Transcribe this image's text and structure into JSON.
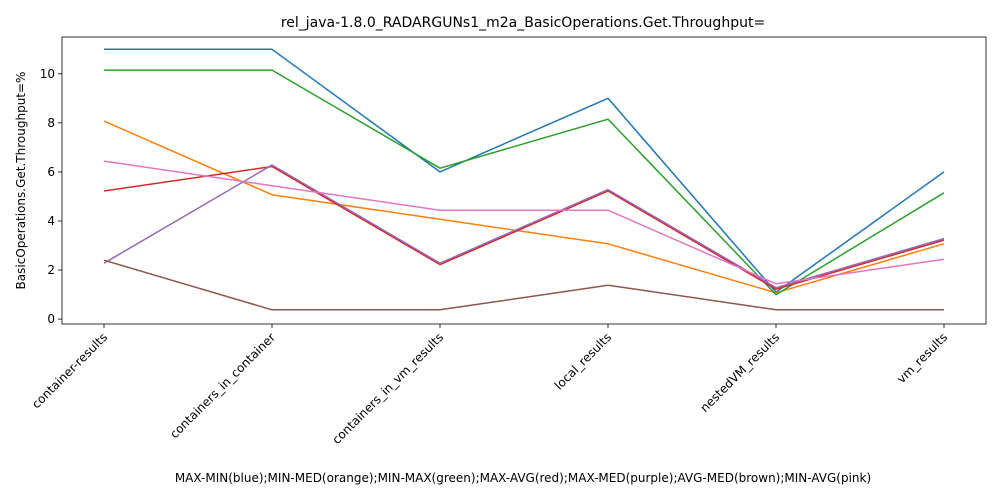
{
  "chart_data": {
    "type": "line",
    "title": "rel_java-1.8.0_RADARGUNs1_m2a_BasicOperations.Get.Throughput=",
    "xlabel": "MAX-MIN(blue);MIN-MED(orange);MIN-MAX(green);MAX-AVG(red);MAX-MED(purple);AVG-MED(brown);MIN-AVG(pink)",
    "ylabel": "BasicOperations.Get.Throughput=%",
    "categories": [
      "container-results",
      "containers_in_container",
      "containers_in_vm_results",
      "local_results",
      "nestedVM_results",
      "vm_results"
    ],
    "yticks": [
      "0",
      "2",
      "4",
      "6",
      "8",
      "10"
    ],
    "ylim": [
      -0.2,
      11.5
    ],
    "grid": false,
    "series": [
      {
        "color": "#1f77b4",
        "values": [
          11.0,
          11.0,
          6.0,
          9.0,
          1.1,
          6.0
        ]
      },
      {
        "color": "#ff7f0e",
        "values": [
          8.07,
          5.07,
          4.07,
          3.07,
          1.07,
          3.07
        ]
      },
      {
        "color": "#2ca02c",
        "values": [
          10.15,
          10.15,
          6.15,
          8.15,
          1.0,
          5.15
        ]
      },
      {
        "color": "#d62728",
        "values": [
          5.22,
          6.22,
          2.22,
          5.22,
          1.22,
          3.22
        ]
      },
      {
        "color": "#9467bd",
        "values": [
          2.28,
          6.28,
          2.28,
          5.28,
          1.28,
          3.28
        ]
      },
      {
        "color": "#8c564b",
        "values": [
          2.4,
          0.38,
          0.38,
          1.38,
          0.38,
          0.38
        ]
      },
      {
        "color": "#e377c2",
        "values": [
          6.44,
          5.44,
          4.44,
          4.44,
          1.44,
          2.44
        ]
      }
    ]
  }
}
